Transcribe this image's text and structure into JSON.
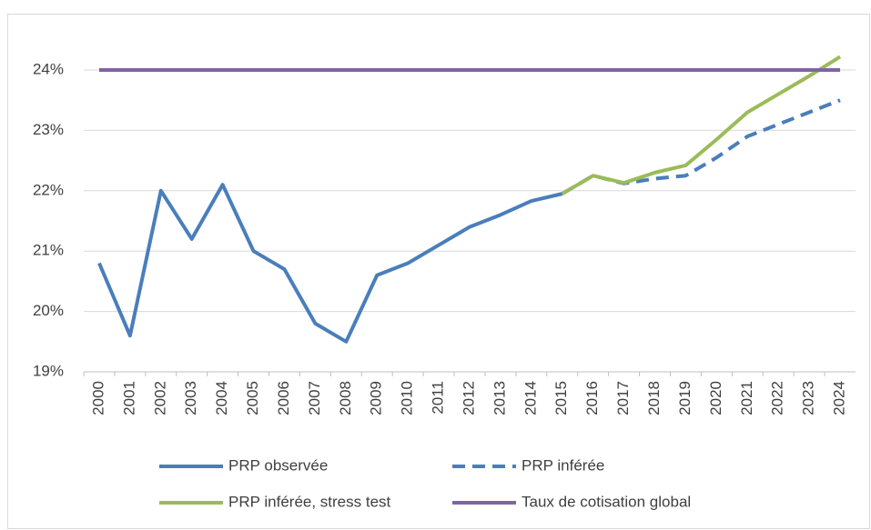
{
  "chart_data": {
    "type": "line",
    "categories": [
      "2000",
      "2001",
      "2002",
      "2003",
      "2004",
      "2005",
      "2006",
      "2007",
      "2008",
      "2009",
      "2010",
      "2011",
      "2012",
      "2013",
      "2014",
      "2015",
      "2016",
      "2017",
      "2018",
      "2019",
      "2020",
      "2021",
      "2022",
      "2023",
      "2024"
    ],
    "series": [
      {
        "name": "PRP observée",
        "color": "#4a7ebb",
        "dashed": false,
        "values": [
          20.8,
          19.6,
          22.0,
          21.2,
          22.1,
          21.0,
          20.7,
          19.8,
          19.5,
          20.6,
          20.8,
          21.1,
          21.4,
          21.6,
          21.83,
          21.95,
          null,
          null,
          null,
          null,
          null,
          null,
          null,
          null,
          null
        ]
      },
      {
        "name": "PRP inférée",
        "color": "#4a7ebb",
        "dashed": true,
        "values": [
          null,
          null,
          null,
          null,
          null,
          null,
          null,
          null,
          null,
          null,
          null,
          null,
          null,
          null,
          null,
          21.95,
          22.25,
          22.12,
          22.2,
          22.25,
          22.55,
          22.9,
          23.1,
          23.3,
          23.5
        ]
      },
      {
        "name": "PRP inférée, stress test",
        "color": "#9bbb59",
        "dashed": false,
        "values": [
          null,
          null,
          null,
          null,
          null,
          null,
          null,
          null,
          null,
          null,
          null,
          null,
          null,
          null,
          null,
          21.95,
          22.25,
          22.13,
          22.3,
          22.42,
          22.85,
          23.3,
          23.6,
          23.9,
          24.22
        ]
      },
      {
        "name": "Taux de cotisation global",
        "color": "#8064a2",
        "dashed": false,
        "values": [
          24,
          24,
          24,
          24,
          24,
          24,
          24,
          24,
          24,
          24,
          24,
          24,
          24,
          24,
          24,
          24,
          24,
          24,
          24,
          24,
          24,
          24,
          24,
          24,
          24
        ]
      }
    ],
    "ylim": [
      19,
      24.5
    ],
    "yticks": [
      {
        "value": 19,
        "label": "19%"
      },
      {
        "value": 20,
        "label": "20%"
      },
      {
        "value": 21,
        "label": "21%"
      },
      {
        "value": 22,
        "label": "22%"
      },
      {
        "value": 23,
        "label": "23%"
      },
      {
        "value": 24,
        "label": "24%"
      }
    ],
    "grid": true,
    "legend": "bottom"
  }
}
